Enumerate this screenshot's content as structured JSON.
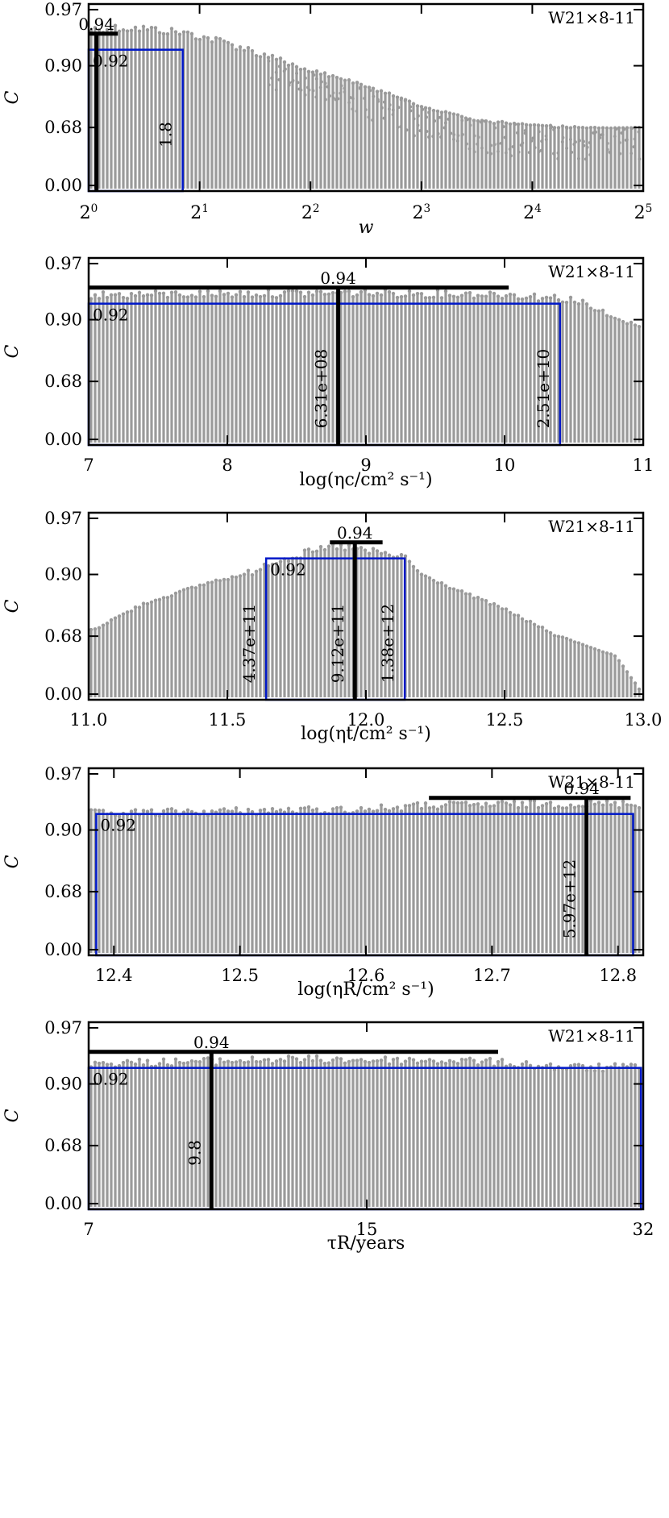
{
  "colors": {
    "points": "#9a9a9a",
    "frame": "#000000",
    "box": "#0018c8",
    "best": "#000000"
  },
  "chart_data": [
    {
      "type": "scatter",
      "panel_label": "W21×8-11",
      "xlabel": "w",
      "ylabel": "C",
      "x_scale": "log2",
      "xlim": [
        1,
        32
      ],
      "xticks": [
        {
          "v": 1,
          "base": "2",
          "exp": "0"
        },
        {
          "v": 2,
          "base": "2",
          "exp": "1"
        },
        {
          "v": 4,
          "base": "2",
          "exp": "2"
        },
        {
          "v": 8,
          "base": "2",
          "exp": "3"
        },
        {
          "v": 16,
          "base": "2",
          "exp": "4"
        },
        {
          "v": 32,
          "base": "2",
          "exp": "5"
        }
      ],
      "ytick_labels": [
        "0.00",
        "0.68",
        "0.90",
        "0.97"
      ],
      "envelope": [
        [
          1.0,
          0.95
        ],
        [
          1.15,
          0.952
        ],
        [
          1.4,
          0.951
        ],
        [
          1.8,
          0.946
        ],
        [
          2.5,
          0.93
        ],
        [
          3.5,
          0.905
        ],
        [
          4.5,
          0.87
        ],
        [
          6,
          0.82
        ],
        [
          8,
          0.76
        ],
        [
          11,
          0.71
        ],
        [
          16,
          0.69
        ],
        [
          24,
          0.68
        ],
        [
          32,
          0.68
        ]
      ],
      "best": {
        "x": 1.05,
        "c": 0.94,
        "label": "0.94",
        "hbar": [
          1.0,
          1.2
        ]
      },
      "box": {
        "x_lo": 1.0,
        "x_hi": 1.8,
        "c": 0.92,
        "label": "0.92",
        "hi_label": "1.8"
      }
    },
    {
      "type": "scatter",
      "panel_label": "W21×8-11",
      "xlabel": "log(ηc/cm² s⁻¹)",
      "ylabel": "C",
      "x_scale": "linear",
      "xlim": [
        7,
        11
      ],
      "xticks": [
        {
          "v": 7,
          "label": "7"
        },
        {
          "v": 8,
          "label": "8"
        },
        {
          "v": 9,
          "label": "9"
        },
        {
          "v": 10,
          "label": "10"
        },
        {
          "v": 11,
          "label": "11"
        }
      ],
      "ytick_labels": [
        "0.00",
        "0.68",
        "0.90",
        "0.97"
      ],
      "envelope": [
        [
          7.0,
          0.935
        ],
        [
          8.0,
          0.937
        ],
        [
          9.0,
          0.938
        ],
        [
          10.0,
          0.936
        ],
        [
          10.5,
          0.93
        ],
        [
          10.8,
          0.905
        ],
        [
          11.0,
          0.88
        ]
      ],
      "best": {
        "x": 8.8,
        "c": 0.94,
        "label": "0.94",
        "hbar": [
          7.0,
          10.03
        ],
        "val_label": "6.31e+08"
      },
      "box": {
        "x_lo": 7.0,
        "x_hi": 10.4,
        "c": 0.92,
        "label": "0.92",
        "hi_label": "2.51e+10"
      }
    },
    {
      "type": "scatter",
      "panel_label": "W21×8-11",
      "xlabel": "log(ηt/cm² s⁻¹)",
      "ylabel": "C",
      "x_scale": "linear",
      "xlim": [
        11,
        13
      ],
      "xticks": [
        {
          "v": 11,
          "label": "11.0"
        },
        {
          "v": 11.5,
          "label": "11.5"
        },
        {
          "v": 12,
          "label": "12.0"
        },
        {
          "v": 12.5,
          "label": "12.5"
        },
        {
          "v": 13,
          "label": "13.0"
        }
      ],
      "ytick_labels": [
        "0.00",
        "0.68",
        "0.90",
        "0.97"
      ],
      "envelope": [
        [
          11.0,
          0.7
        ],
        [
          11.2,
          0.8
        ],
        [
          11.45,
          0.88
        ],
        [
          11.65,
          0.92
        ],
        [
          11.9,
          0.94
        ],
        [
          12.15,
          0.925
        ],
        [
          12.3,
          0.86
        ],
        [
          12.5,
          0.78
        ],
        [
          12.7,
          0.68
        ],
        [
          12.9,
          0.45
        ],
        [
          13.0,
          0.0
        ]
      ],
      "best": {
        "x": 11.96,
        "c": 0.94,
        "label": "0.94",
        "hbar": [
          11.87,
          12.06
        ],
        "val_label": "9.12e+11"
      },
      "box": {
        "x_lo": 11.64,
        "x_hi": 12.14,
        "c": 0.92,
        "label": "0.92",
        "lo_label": "4.37e+11",
        "hi_label": "1.38e+12"
      }
    },
    {
      "type": "scatter",
      "panel_label": "W21×8-11",
      "xlabel": "log(ηR/cm² s⁻¹)",
      "ylabel": "C",
      "x_scale": "linear",
      "xlim": [
        12.38,
        12.82
      ],
      "xticks": [
        {
          "v": 12.4,
          "label": "12.4"
        },
        {
          "v": 12.5,
          "label": "12.5"
        },
        {
          "v": 12.6,
          "label": "12.6"
        },
        {
          "v": 12.7,
          "label": "12.7"
        },
        {
          "v": 12.8,
          "label": "12.8"
        }
      ],
      "ytick_labels": [
        "0.00",
        "0.68",
        "0.90",
        "0.97"
      ],
      "envelope": [
        [
          12.385,
          0.925
        ],
        [
          12.5,
          0.928
        ],
        [
          12.6,
          0.93
        ],
        [
          12.65,
          0.935
        ],
        [
          12.75,
          0.937
        ],
        [
          12.81,
          0.937
        ]
      ],
      "best": {
        "x": 12.775,
        "c": 0.94,
        "label": "0.94",
        "hbar": [
          12.65,
          12.81
        ],
        "val_label": "5.97e+12"
      },
      "box": {
        "x_lo": 12.386,
        "x_hi": 12.812,
        "c": 0.92,
        "label": "0.92"
      }
    },
    {
      "type": "scatter",
      "panel_label": "W21×8-11",
      "xlabel": "τR/years",
      "ylabel": "C",
      "x_scale": "log",
      "xlim": [
        7,
        32
      ],
      "xticks": [
        {
          "v": 7,
          "label": "7"
        },
        {
          "v": 15,
          "label": "15"
        },
        {
          "v": 32,
          "label": "32"
        }
      ],
      "ytick_labels": [
        "0.00",
        "0.68",
        "0.90",
        "0.97"
      ],
      "envelope": [
        [
          7,
          0.93
        ],
        [
          12,
          0.935
        ],
        [
          20,
          0.933
        ],
        [
          26,
          0.925
        ],
        [
          32,
          0.925
        ]
      ],
      "best": {
        "x": 9.8,
        "c": 0.94,
        "label": "0.94",
        "hbar": [
          7.0,
          21.5
        ],
        "val_label": "9.8"
      },
      "box": {
        "x_lo": 7.0,
        "x_hi": 31.8,
        "c": 0.92,
        "label": "0.92"
      }
    }
  ]
}
